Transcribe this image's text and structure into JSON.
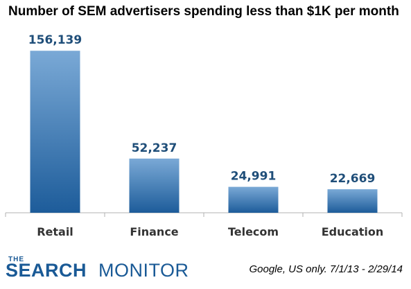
{
  "chart_data": {
    "type": "bar",
    "title": "Number of SEM advertisers spending less than $1K per month",
    "categories": [
      "Retail",
      "Finance",
      "Telecom",
      "Education"
    ],
    "values": [
      156139,
      52237,
      24991,
      22669
    ],
    "value_labels": [
      "156,139",
      "52,237",
      "24,991",
      "22,669"
    ],
    "xlabel": "",
    "ylabel": "",
    "ylim": [
      0,
      175000
    ],
    "grid": false,
    "legend": "none",
    "colors": {
      "bar_top": "#7aa9d6",
      "bar_bottom": "#1d5c9a",
      "label": "#1f4e79",
      "axis": "#b0b0b0"
    }
  },
  "logo": {
    "the": "THE",
    "search": "SEARCH",
    "monitor": "MONITOR"
  },
  "source_note": "Google, US only. 7/1/13 - 2/29/14"
}
